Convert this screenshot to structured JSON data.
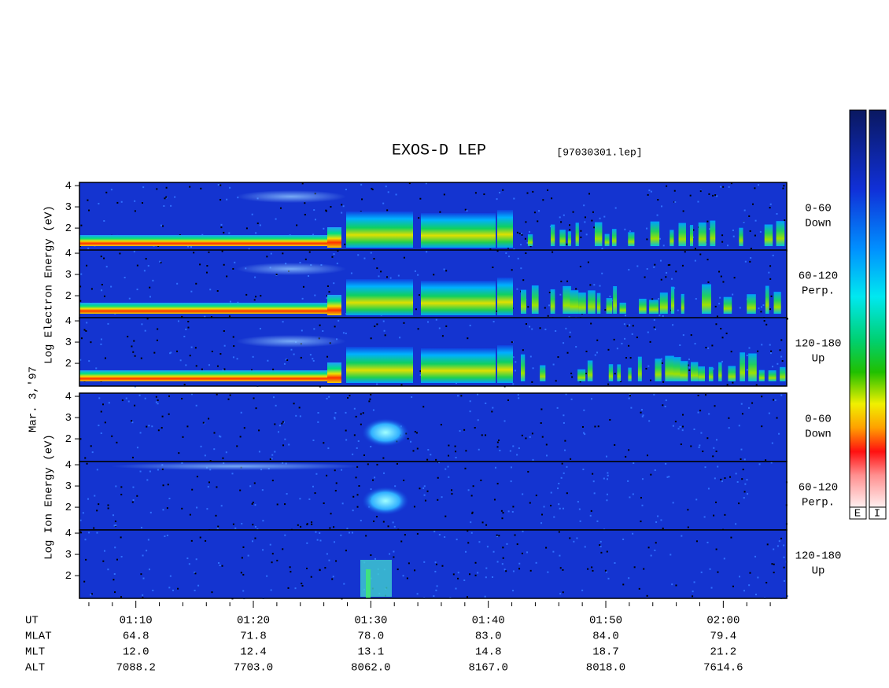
{
  "chart_data": {
    "type": "spectrogram",
    "title": "EXOS-D LEP",
    "subtitle": "[97030301.lep]",
    "date_label": "Mar. 3,'97",
    "groups": [
      {
        "ylabel": "Log  Electron  Energy (eV)",
        "colorbar_label": "E",
        "panels": [
          {
            "label": [
              "0-60",
              "Down"
            ]
          },
          {
            "label": [
              "60-120",
              "Perp."
            ]
          },
          {
            "label": [
              "120-180",
              "Up"
            ]
          }
        ]
      },
      {
        "ylabel": "Log  Ion  Energy (eV)",
        "colorbar_label": "I",
        "panels": [
          {
            "label": [
              "0-60",
              "Down"
            ]
          },
          {
            "label": [
              "60-120",
              "Perp."
            ]
          },
          {
            "label": [
              "120-180",
              "Up"
            ]
          }
        ]
      }
    ],
    "ylim": [
      0.93,
      4.15
    ],
    "yticks": [
      2,
      3,
      4
    ],
    "xlim": [
      65.2,
      125.4
    ],
    "xticks": [
      {
        "value": 70,
        "label": "01:10"
      },
      {
        "value": 80,
        "label": "01:20"
      },
      {
        "value": 90,
        "label": "01:30"
      },
      {
        "value": 100,
        "label": "01:40"
      },
      {
        "value": 110,
        "label": "01:50"
      },
      {
        "value": 120,
        "label": "02:00"
      }
    ],
    "xminorticks": [
      66,
      68,
      72,
      74,
      76,
      78,
      82,
      84,
      86,
      88,
      92,
      94,
      96,
      98,
      102,
      104,
      106,
      108,
      112,
      114,
      116,
      118,
      122,
      124
    ],
    "xlabel": "UT",
    "orbit_rows": [
      {
        "name": "MLAT",
        "labels": [
          "64.8",
          "71.8",
          "78.0",
          "83.0",
          "84.0",
          "79.4"
        ]
      },
      {
        "name": "MLT",
        "labels": [
          "12.0",
          "12.4",
          "13.1",
          "14.8",
          "18.7",
          "21.2"
        ]
      },
      {
        "name": "ALT",
        "labels": [
          "7088.2",
          "7703.0",
          "8062.0",
          "8167.0",
          "8018.0",
          "7614.6"
        ]
      }
    ]
  }
}
